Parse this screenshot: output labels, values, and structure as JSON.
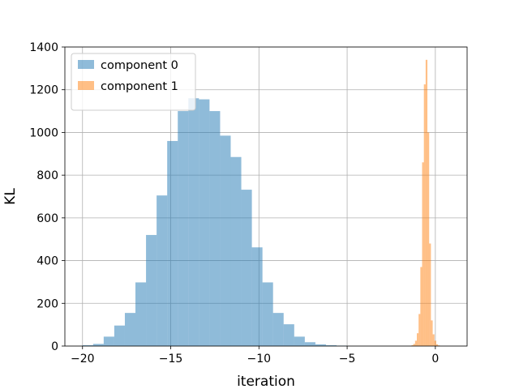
{
  "chart_data": {
    "type": "bar",
    "xlabel": "iteration",
    "ylabel": "KL",
    "xlim": [
      -21,
      1.8
    ],
    "ylim": [
      0,
      1400
    ],
    "xticks": [
      -20,
      -15,
      -10,
      -5,
      0
    ],
    "xtick_labels": [
      "−20",
      "−15",
      "−10",
      "−5",
      "0"
    ],
    "yticks": [
      0,
      200,
      400,
      600,
      800,
      1000,
      1200,
      1400
    ],
    "ytick_labels": [
      "0",
      "200",
      "400",
      "600",
      "800",
      "1000",
      "1200",
      "1400"
    ],
    "grid": true,
    "legend_position": "top-left",
    "series": [
      {
        "name": "component 0",
        "color": "#1f77b4",
        "opacity": 0.5,
        "bins": [
          [
            -20.0,
            -19.4,
            4
          ],
          [
            -19.4,
            -18.8,
            10
          ],
          [
            -18.8,
            -18.2,
            44
          ],
          [
            -18.2,
            -17.6,
            96
          ],
          [
            -17.6,
            -17.0,
            155
          ],
          [
            -17.0,
            -16.4,
            298
          ],
          [
            -16.4,
            -15.8,
            520
          ],
          [
            -15.8,
            -15.2,
            705
          ],
          [
            -15.2,
            -14.6,
            960
          ],
          [
            -14.6,
            -14.0,
            1100
          ],
          [
            -14.0,
            -13.4,
            1160
          ],
          [
            -13.4,
            -12.8,
            1155
          ],
          [
            -12.8,
            -12.2,
            1100
          ],
          [
            -12.2,
            -11.6,
            985
          ],
          [
            -11.6,
            -11.0,
            885
          ],
          [
            -11.0,
            -10.4,
            732
          ],
          [
            -10.4,
            -9.8,
            462
          ],
          [
            -9.8,
            -9.2,
            298
          ],
          [
            -9.2,
            -8.6,
            155
          ],
          [
            -8.6,
            -8.0,
            102
          ],
          [
            -8.0,
            -7.4,
            44
          ],
          [
            -7.4,
            -6.8,
            18
          ],
          [
            -6.8,
            -6.2,
            8
          ],
          [
            -6.2,
            -5.6,
            4
          ],
          [
            -5.6,
            -5.0,
            2
          ]
        ]
      },
      {
        "name": "component 1",
        "color": "#ff7f0e",
        "opacity": 0.5,
        "bins": [
          [
            -1.35,
            -1.25,
            4
          ],
          [
            -1.25,
            -1.15,
            10
          ],
          [
            -1.15,
            -1.05,
            25
          ],
          [
            -1.05,
            -0.95,
            60
          ],
          [
            -0.95,
            -0.85,
            150
          ],
          [
            -0.85,
            -0.75,
            370
          ],
          [
            -0.75,
            -0.65,
            860
          ],
          [
            -0.65,
            -0.55,
            1225
          ],
          [
            -0.55,
            -0.45,
            1340
          ],
          [
            -0.45,
            -0.35,
            1000
          ],
          [
            -0.35,
            -0.25,
            480
          ],
          [
            -0.25,
            -0.15,
            120
          ],
          [
            -0.15,
            -0.05,
            55
          ],
          [
            -0.05,
            0.05,
            25
          ],
          [
            0.05,
            0.15,
            8
          ],
          [
            0.15,
            0.25,
            3
          ]
        ]
      }
    ]
  }
}
